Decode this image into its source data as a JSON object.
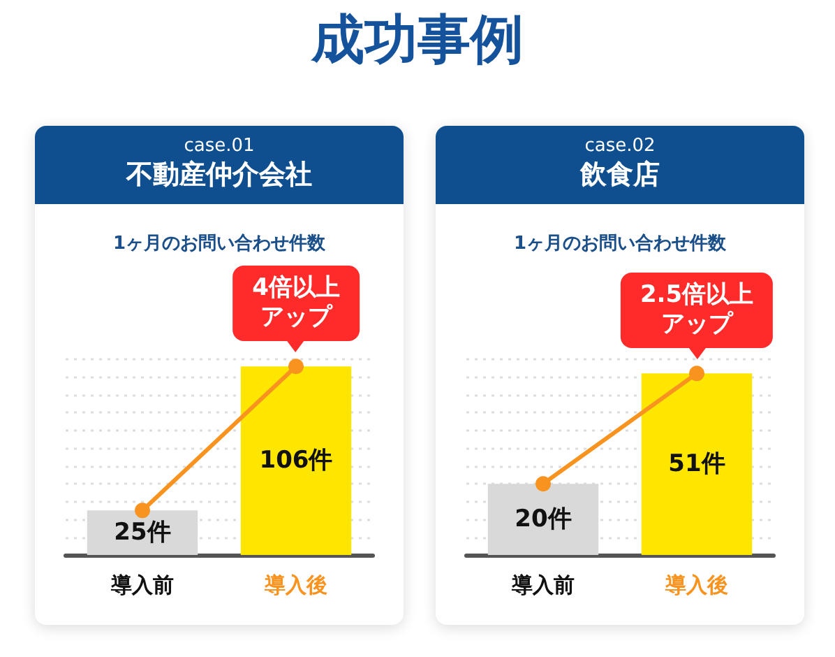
{
  "chart_data": [
    {
      "type": "bar",
      "title": "case.01\n不動産仲介会社",
      "subtitle": "1ヶ月のお問い合わせ件数",
      "annotations": [
        "成功事例",
        {
          "text": "4倍以上アップ",
          "x": "導入後",
          "y": 106
        }
      ],
      "categories": [
        "導入前",
        "導入後"
      ],
      "series": [
        {
          "colors": [
            "#d9d9d9",
            "#ffe600"
          ],
          "values": [
            25,
            106
          ],
          "value_labels": [
            "25件",
            "106件"
          ]
        },
        {
          "type": "line",
          "color": "#f7931e",
          "values": [
            25,
            106
          ]
        }
      ],
      "marker": "circle",
      "grid": "y",
      "tick_labels": "x"
    },
    {
      "type": "bar",
      "title": "case.02\n飲食店",
      "subtitle": "1ヶ月のお問い合わせ件数",
      "annotations": [
        {
          "text": "2.5倍以上アップ",
          "x": "導入後",
          "y": 51
        }
      ],
      "categories": [
        "導入前",
        "導入後"
      ],
      "series": [
        {
          "colors": [
            "#d9d9d9",
            "#ffe600"
          ],
          "values": [
            20,
            51
          ],
          "value_labels": [
            "20件",
            "51件"
          ]
        },
        {
          "type": "line",
          "color": "#f7931e",
          "values": [
            20,
            51
          ]
        }
      ],
      "marker": "circle",
      "grid": "y",
      "tick_labels": "x"
    }
  ]
}
